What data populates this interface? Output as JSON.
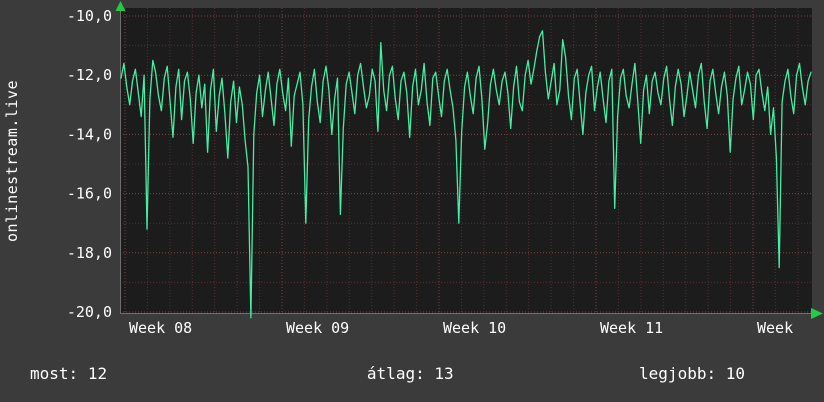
{
  "stats": {
    "now": {
      "label": "most:",
      "value": "12"
    },
    "avg": {
      "label": "átlag:",
      "value": "13"
    },
    "best": {
      "label": "legjobb:",
      "value": "10"
    }
  },
  "chart_data": {
    "type": "line",
    "title": "",
    "side_label": "onlinestream.live",
    "x_ticks": [
      "Week 08",
      "Week 09",
      "Week 10",
      "Week 11",
      "Week"
    ],
    "y_ticks": [
      "-10,0",
      "-12,0",
      "-14,0",
      "-16,0",
      "-18,0",
      "-20,0"
    ],
    "y_tick_values": [
      -10,
      -12,
      -14,
      -16,
      -18,
      -20
    ],
    "ylim": [
      -20,
      -10
    ],
    "grid": true,
    "legend": false,
    "colors": {
      "line": "#45eea5",
      "arrow": "#22cc44",
      "plot_bg": "#1c1c1c",
      "page_bg": "#3b3b3b",
      "grid_minor": "#553030",
      "grid_major": "#7c4444",
      "axis": "#6f6f6f",
      "text": "#ffffff"
    },
    "series": [
      {
        "name": "value",
        "values": [
          -12.1,
          -11.6,
          -12.4,
          -13.0,
          -12.2,
          -11.8,
          -12.6,
          -13.4,
          -12.0,
          -17.2,
          -12.8,
          -11.5,
          -11.9,
          -12.7,
          -13.2,
          -12.1,
          -11.7,
          -12.9,
          -14.1,
          -12.4,
          -11.8,
          -13.5,
          -12.2,
          -11.9,
          -12.8,
          -14.3,
          -12.6,
          -12.0,
          -13.1,
          -12.3,
          -14.6,
          -12.5,
          -11.8,
          -13.9,
          -12.7,
          -12.1,
          -13.3,
          -14.8,
          -12.9,
          -12.2,
          -13.6,
          -12.4,
          -13.0,
          -14.2,
          -15.1,
          -20.2,
          -14.0,
          -12.6,
          -12.0,
          -13.4,
          -12.5,
          -11.9,
          -12.8,
          -13.7,
          -12.3,
          -11.8,
          -12.6,
          -13.2,
          -12.1,
          -14.4,
          -12.7,
          -12.3,
          -11.9,
          -13.0,
          -17.0,
          -13.5,
          -12.4,
          -11.8,
          -12.9,
          -13.6,
          -12.2,
          -11.7,
          -12.5,
          -14.0,
          -12.8,
          -12.1,
          -16.7,
          -13.8,
          -12.3,
          -11.9,
          -12.6,
          -13.3,
          -12.0,
          -11.6,
          -12.4,
          -13.1,
          -12.7,
          -11.8,
          -12.2,
          -13.9,
          -10.9,
          -12.5,
          -13.2,
          -12.0,
          -11.7,
          -12.8,
          -13.5,
          -12.2,
          -11.9,
          -12.6,
          -14.1,
          -12.4,
          -11.8,
          -13.0,
          -12.5,
          -11.6,
          -12.9,
          -13.7,
          -12.1,
          -11.9,
          -12.7,
          -13.4,
          -12.2,
          -11.8,
          -12.5,
          -13.1,
          -14.2,
          -17.0,
          -13.9,
          -12.4,
          -11.9,
          -12.7,
          -13.3,
          -12.1,
          -11.7,
          -12.8,
          -14.5,
          -13.6,
          -12.3,
          -11.8,
          -12.5,
          -13.0,
          -12.2,
          -11.9,
          -12.6,
          -13.8,
          -12.4,
          -11.7,
          -12.9,
          -13.2,
          -12.0,
          -11.5,
          -12.3,
          -11.8,
          -11.2,
          -10.7,
          -10.5,
          -11.9,
          -12.8,
          -12.2,
          -11.6,
          -13.0,
          -12.5,
          -10.8,
          -11.4,
          -12.7,
          -13.5,
          -12.1,
          -11.8,
          -12.9,
          -14.0,
          -12.6,
          -12.0,
          -11.7,
          -13.2,
          -12.4,
          -11.9,
          -12.8,
          -13.6,
          -12.2,
          -11.8,
          -16.5,
          -13.4,
          -12.1,
          -11.8,
          -12.7,
          -13.1,
          -12.3,
          -11.6,
          -12.9,
          -14.3,
          -12.5,
          -12.0,
          -13.3,
          -12.2,
          -11.9,
          -12.6,
          -13.0,
          -12.1,
          -11.7,
          -12.8,
          -13.7,
          -12.4,
          -11.8,
          -12.3,
          -13.4,
          -12.7,
          -11.9,
          -12.5,
          -13.1,
          -12.0,
          -11.6,
          -12.9,
          -13.8,
          -12.2,
          -11.8,
          -12.6,
          -13.3,
          -12.4,
          -11.9,
          -12.7,
          -14.6,
          -12.8,
          -12.1,
          -11.7,
          -13.0,
          -12.5,
          -11.9,
          -12.3,
          -13.5,
          -12.0,
          -11.8,
          -12.6,
          -13.2,
          -12.4,
          -14.0,
          -13.1,
          -14.8,
          -18.5,
          -12.9,
          -12.2,
          -11.8,
          -12.7,
          -13.3,
          -12.0,
          -11.6,
          -12.4,
          -13.0,
          -12.2,
          -11.9
        ]
      }
    ]
  }
}
